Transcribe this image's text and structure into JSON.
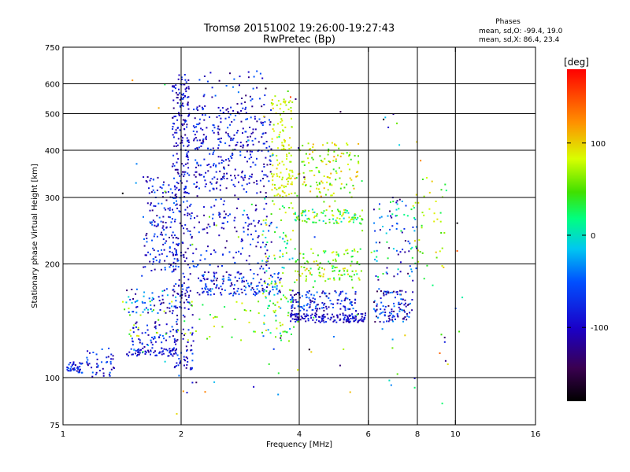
{
  "chart_data": {
    "type": "scatter",
    "title": "Tromsø 20151002 19:26:00-19:27:43",
    "subtitle": "RwPretec (Bp)",
    "xlabel": "Frequency [MHz]",
    "ylabel": "Stationary phase Virtual Height [km]",
    "x_scale": "log",
    "y_scale": "log",
    "xlim": [
      1,
      16
    ],
    "ylim": [
      75,
      750
    ],
    "x_ticks": [
      1,
      2,
      4,
      6,
      8,
      10,
      16
    ],
    "x_tick_labels": [
      "1",
      "2",
      "4",
      "6",
      "8",
      "10",
      "16"
    ],
    "y_ticks": [
      75,
      100,
      200,
      300,
      400,
      500,
      600,
      750
    ],
    "y_tick_labels": [
      "75",
      "100",
      "200",
      "300",
      "400",
      "500",
      "600",
      "750"
    ],
    "grid": true,
    "stats": {
      "header": "Phases",
      "line1": "mean, sd,O: -99.4, 19.0",
      "line2": "mean, sd,X: 86.4, 23.4"
    },
    "colorbar": {
      "label": "[deg]",
      "ticks": [
        100,
        0,
        -100
      ],
      "tick_labels": [
        "100",
        "0",
        "-100"
      ],
      "range": [
        -180,
        180
      ]
    },
    "clusters": [
      {
        "x": [
          1.02,
          1.12
        ],
        "y": [
          103,
          110
        ],
        "n": 45,
        "phase": -100,
        "spread": 30
      },
      {
        "x": [
          1.15,
          1.35
        ],
        "y": [
          100,
          120
        ],
        "n": 45,
        "phase": -100,
        "spread": 30
      },
      {
        "x": [
          1.45,
          1.95
        ],
        "y": [
          114,
          120
        ],
        "n": 70,
        "phase": -105,
        "spread": 20
      },
      {
        "x": [
          1.5,
          1.95
        ],
        "y": [
          122,
          142
        ],
        "n": 55,
        "phase": -100,
        "spread": 30
      },
      {
        "x": [
          1.45,
          1.95
        ],
        "y": [
          148,
          172
        ],
        "n": 60,
        "phase": -80,
        "spread": 60
      },
      {
        "x": [
          1.6,
          1.95
        ],
        "y": [
          190,
          340
        ],
        "n": 150,
        "phase": -100,
        "spread": 35
      },
      {
        "x": [
          1.9,
          2.1
        ],
        "y": [
          300,
          640
        ],
        "n": 170,
        "phase": -110,
        "spread": 25
      },
      {
        "x": [
          1.9,
          2.15
        ],
        "y": [
          105,
          300
        ],
        "n": 180,
        "phase": -105,
        "spread": 30
      },
      {
        "x": [
          2.15,
          3.4
        ],
        "y": [
          320,
          520
        ],
        "n": 300,
        "phase": -105,
        "spread": 30
      },
      {
        "x": [
          2.15,
          3.4
        ],
        "y": [
          190,
          320
        ],
        "n": 150,
        "phase": -105,
        "spread": 30
      },
      {
        "x": [
          2.2,
          3.6
        ],
        "y": [
          165,
          190
        ],
        "n": 150,
        "phase": -95,
        "spread": 40
      },
      {
        "x": [
          2.2,
          3.3
        ],
        "y": [
          520,
          650
        ],
        "n": 40,
        "phase": -100,
        "spread": 40
      },
      {
        "x": [
          3.4,
          3.85
        ],
        "y": [
          300,
          560
        ],
        "n": 130,
        "phase": 90,
        "spread": 25
      },
      {
        "x": [
          3.2,
          3.9
        ],
        "y": [
          130,
          300
        ],
        "n": 110,
        "phase": 30,
        "spread": 90
      },
      {
        "x": [
          3.8,
          5.9
        ],
        "y": [
          140,
          148
        ],
        "n": 150,
        "phase": -110,
        "spread": 20
      },
      {
        "x": [
          3.8,
          5.6
        ],
        "y": [
          150,
          170
        ],
        "n": 130,
        "phase": -100,
        "spread": 40
      },
      {
        "x": [
          3.9,
          5.8
        ],
        "y": [
          180,
          220
        ],
        "n": 110,
        "phase": 60,
        "spread": 60
      },
      {
        "x": [
          3.9,
          5.8
        ],
        "y": [
          255,
          280
        ],
        "n": 100,
        "phase": 40,
        "spread": 70
      },
      {
        "x": [
          3.9,
          5.7
        ],
        "y": [
          300,
          420
        ],
        "n": 130,
        "phase": 80,
        "spread": 60
      },
      {
        "x": [
          1.4,
          4.0
        ],
        "y": [
          125,
          160
        ],
        "n": 60,
        "phase": 60,
        "spread": 50
      },
      {
        "x": [
          6.2,
          7.8
        ],
        "y": [
          140,
          170
        ],
        "n": 110,
        "phase": -100,
        "spread": 50
      },
      {
        "x": [
          6.2,
          8.0
        ],
        "y": [
          180,
          300
        ],
        "n": 80,
        "phase": -60,
        "spread": 90
      },
      {
        "x": [
          7.8,
          9.5
        ],
        "y": [
          195,
          340
        ],
        "n": 40,
        "phase": 60,
        "spread": 60
      },
      {
        "x": [
          1.4,
          10.5
        ],
        "y": [
          80,
          620
        ],
        "n": 120,
        "phase": 0,
        "spread": 180
      }
    ]
  }
}
